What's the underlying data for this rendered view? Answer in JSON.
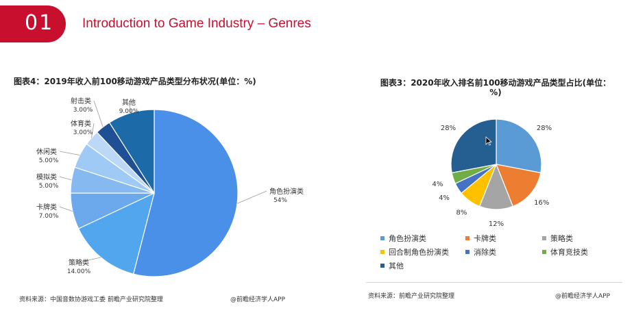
{
  "header": {
    "number": "01",
    "title": "Introduction to Game Industry – Genres"
  },
  "colors": {
    "brand_red": "#c8102e"
  },
  "chart_data": [
    {
      "type": "pie",
      "title": "图表4：2019年收入前100移动游戏产品类型分布状况(单位：%)",
      "slices": [
        {
          "label": "角色扮演类",
          "value_text": "54%",
          "value": 54,
          "color": "#4a8fe8"
        },
        {
          "label": "策略类",
          "value_text": "14.00%",
          "value": 14,
          "color": "#52a6ee"
        },
        {
          "label": "卡牌类",
          "value_text": "7.00%",
          "value": 7,
          "color": "#6ba8ec"
        },
        {
          "label": "模拟类",
          "value_text": "5.00%",
          "value": 5,
          "color": "#86b9f0"
        },
        {
          "label": "休闲类",
          "value_text": "5.00%",
          "value": 5,
          "color": "#9fcaf5"
        },
        {
          "label": "体育类",
          "value_text": "3.00%",
          "value": 3,
          "color": "#bcd8f7"
        },
        {
          "label": "射击类",
          "value_text": "3.00%",
          "value": 3,
          "color": "#1f4f95"
        },
        {
          "label": "其他",
          "value_text": "9.00%",
          "value": 9,
          "color": "#1d6aa8"
        }
      ],
      "source": "资料来源：中国音数协游戏工委 前瞻产业研究院整理",
      "credit": "@前瞻经济学人APP"
    },
    {
      "type": "pie",
      "title": "图表3：2020年收入排名前100移动游戏产品类型占比(单位：%)",
      "slices": [
        {
          "label": "角色扮演类",
          "value_text": "28%",
          "value": 28,
          "color": "#5b9bd5"
        },
        {
          "label": "卡牌类",
          "value_text": "16%",
          "value": 16,
          "color": "#ed7d31"
        },
        {
          "label": "策略类",
          "value_text": "12%",
          "value": 12,
          "color": "#a5a5a5"
        },
        {
          "label": "回合制角色扮演类",
          "value_text": "8%",
          "value": 8,
          "color": "#ffc000"
        },
        {
          "label": "消除类",
          "value_text": "4%",
          "value": 4,
          "color": "#4472c4"
        },
        {
          "label": "体育竞技类",
          "value_text": "4%",
          "value": 4,
          "color": "#70ad47"
        },
        {
          "label": "其他",
          "value_text": "28%",
          "value": 28,
          "color": "#255e91"
        }
      ],
      "legend_position": "bottom",
      "source": "资料来源：前瞻产业研究院整理",
      "credit": "@前瞻经济学人APP"
    }
  ]
}
